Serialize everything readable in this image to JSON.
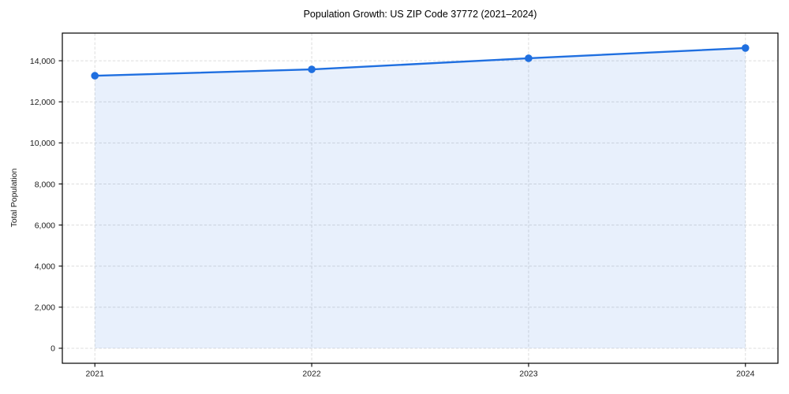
{
  "chart_data": {
    "type": "area",
    "title": "Population Growth: US ZIP Code 37772 (2021–2024)",
    "xlabel": "",
    "ylabel": "Total Population",
    "x": [
      2021,
      2022,
      2023,
      2024
    ],
    "series": [
      {
        "name": "Total Population",
        "values": [
          13270,
          13580,
          14120,
          14620
        ]
      }
    ],
    "fill_baseline": 0,
    "xticks": [
      2021,
      2022,
      2023,
      2024
    ],
    "xtick_labels": [
      "2021",
      "2022",
      "2023",
      "2024"
    ],
    "yticks": [
      0,
      2000,
      4000,
      6000,
      8000,
      10000,
      12000,
      14000
    ],
    "ytick_labels": [
      "0",
      "2,000",
      "4,000",
      "6,000",
      "8,000",
      "10,000",
      "12,000",
      "14,000"
    ],
    "xlim": [
      2020.85,
      2024.15
    ],
    "ylim": [
      -731,
      15346
    ],
    "grid": true,
    "grid_style": "dashed",
    "legend": "none",
    "colors": {
      "line": "#1f6fe0",
      "marker": "#1f6fe0",
      "fill": "rgba(31,111,224,0.10)",
      "grid": "#dcdcdc",
      "axis": "#000000",
      "text": "#1a1a1a",
      "title": "#000000",
      "background": "#ffffff"
    }
  }
}
